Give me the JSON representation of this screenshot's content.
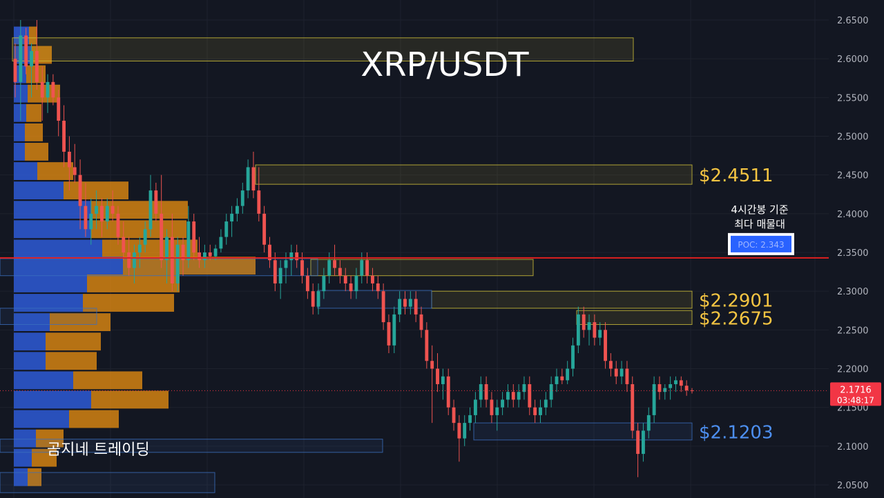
{
  "chart_data": {
    "type": "candlestick",
    "title": "XRP/USDT",
    "watermark": "곰지네 트레이딩",
    "y_axis": {
      "min": 2.04,
      "max": 2.66,
      "ticks": [
        "2.6500",
        "2.6000",
        "2.5500",
        "2.5000",
        "2.4500",
        "2.4000",
        "2.3500",
        "2.3000",
        "2.2500",
        "2.2000",
        "2.1500",
        "2.1000",
        "2.0500"
      ]
    },
    "current_price": {
      "value": 2.1716,
      "label": "2.1716",
      "countdown": "03:48:17",
      "color": "#f23645"
    },
    "poc": {
      "value": 2.343,
      "label": "POC: 2.343",
      "note_line1": "4시간봉 기준",
      "note_line2": "최다 매물대",
      "line_color": "#e0201f"
    },
    "zones": [
      {
        "name": "zone-2.61",
        "top": 2.627,
        "bottom": 2.597,
        "x0": 18,
        "x1": 917,
        "color": "#d4c43a",
        "label": ""
      },
      {
        "name": "zone-2.4511",
        "top": 2.463,
        "bottom": 2.438,
        "x0": 370,
        "x1": 1002,
        "color": "#d4c43a",
        "label": "$2.4511",
        "label_color": "#f5c542"
      },
      {
        "name": "zone-2.33",
        "top": 2.341,
        "bottom": 2.32,
        "x0": 450,
        "x1": 772,
        "color": "#d4c43a",
        "label": ""
      },
      {
        "name": "zone-2.2901",
        "top": 2.3,
        "bottom": 2.278,
        "x0": 625,
        "x1": 1002,
        "color": "#d4c43a",
        "label": "$2.2901",
        "label_color": "#f5c542"
      },
      {
        "name": "zone-2.2675",
        "top": 2.275,
        "bottom": 2.257,
        "x0": 835,
        "x1": 1002,
        "color": "#d4c43a",
        "label": "$2.2675",
        "label_color": "#f5c542"
      },
      {
        "name": "zone-2.1203",
        "top": 2.13,
        "bottom": 2.108,
        "x0": 686,
        "x1": 1002,
        "color": "#3b6fbf",
        "label": "$2.1203",
        "label_color": "#4d8ff0"
      },
      {
        "name": "zone-2.30-blue",
        "top": 2.301,
        "bottom": 2.278,
        "x0": 460,
        "x1": 625,
        "color": "#3b6fbf",
        "label": ""
      },
      {
        "name": "zone-2.34-blue",
        "top": 2.342,
        "bottom": 2.32,
        "x0": 0,
        "x1": 460,
        "color": "#3b6fbf",
        "label": ""
      },
      {
        "name": "zone-2.27-blue",
        "top": 2.278,
        "bottom": 2.257,
        "x0": 0,
        "x1": 140,
        "color": "#3b6fbf",
        "label": ""
      },
      {
        "name": "zone-2.10-blue",
        "top": 2.109,
        "bottom": 2.092,
        "x0": 0,
        "x1": 554,
        "color": "#3b6fbf",
        "label": ""
      },
      {
        "name": "zone-2.05-blue",
        "top": 2.066,
        "bottom": 2.04,
        "x0": 0,
        "x1": 311,
        "color": "#3b6fbf",
        "label": ""
      }
    ],
    "volume_profile": {
      "blue_color": "#2e5ad6",
      "orange_color": "#e08a12",
      "rows": [
        {
          "price": 2.63,
          "buy": 22,
          "sell": 12
        },
        {
          "price": 2.605,
          "buy": 25,
          "sell": 30
        },
        {
          "price": 2.58,
          "buy": 18,
          "sell": 28
        },
        {
          "price": 2.555,
          "buy": 20,
          "sell": 47
        },
        {
          "price": 2.53,
          "buy": 18,
          "sell": 22
        },
        {
          "price": 2.505,
          "buy": 16,
          "sell": 26
        },
        {
          "price": 2.48,
          "buy": 16,
          "sell": 34
        },
        {
          "price": 2.455,
          "buy": 34,
          "sell": 52
        },
        {
          "price": 2.43,
          "buy": 72,
          "sell": 94
        },
        {
          "price": 2.405,
          "buy": 112,
          "sell": 140
        },
        {
          "price": 2.38,
          "buy": 112,
          "sell": 138
        },
        {
          "price": 2.355,
          "buy": 128,
          "sell": 138
        },
        {
          "price": 2.333,
          "buy": 158,
          "sell": 192
        },
        {
          "price": 2.31,
          "buy": 106,
          "sell": 134
        },
        {
          "price": 2.285,
          "buy": 100,
          "sell": 132
        },
        {
          "price": 2.26,
          "buy": 52,
          "sell": 88
        },
        {
          "price": 2.235,
          "buy": 46,
          "sell": 80
        },
        {
          "price": 2.21,
          "buy": 46,
          "sell": 74
        },
        {
          "price": 2.185,
          "buy": 86,
          "sell": 100
        },
        {
          "price": 2.16,
          "buy": 112,
          "sell": 112
        },
        {
          "price": 2.135,
          "buy": 80,
          "sell": 72
        },
        {
          "price": 2.11,
          "buy": 32,
          "sell": 40
        },
        {
          "price": 2.085,
          "buy": 26,
          "sell": 36
        },
        {
          "price": 2.06,
          "buy": 20,
          "sell": 20
        }
      ]
    },
    "candles": [
      {
        "o": 2.6,
        "h": 2.62,
        "l": 2.55,
        "c": 2.57
      },
      {
        "o": 2.57,
        "h": 2.65,
        "l": 2.52,
        "c": 2.63
      },
      {
        "o": 2.63,
        "h": 2.64,
        "l": 2.58,
        "c": 2.59
      },
      {
        "o": 2.59,
        "h": 2.62,
        "l": 2.55,
        "c": 2.61
      },
      {
        "o": 2.61,
        "h": 2.65,
        "l": 2.56,
        "c": 2.57
      },
      {
        "o": 2.57,
        "h": 2.59,
        "l": 2.52,
        "c": 2.55
      },
      {
        "o": 2.55,
        "h": 2.58,
        "l": 2.53,
        "c": 2.57
      },
      {
        "o": 2.57,
        "h": 2.58,
        "l": 2.54,
        "c": 2.55
      },
      {
        "o": 2.55,
        "h": 2.56,
        "l": 2.5,
        "c": 2.52
      },
      {
        "o": 2.52,
        "h": 2.54,
        "l": 2.46,
        "c": 2.48
      },
      {
        "o": 2.48,
        "h": 2.5,
        "l": 2.43,
        "c": 2.46
      },
      {
        "o": 2.46,
        "h": 2.49,
        "l": 2.44,
        "c": 2.45
      },
      {
        "o": 2.45,
        "h": 2.47,
        "l": 2.38,
        "c": 2.41
      },
      {
        "o": 2.41,
        "h": 2.44,
        "l": 2.37,
        "c": 2.38
      },
      {
        "o": 2.38,
        "h": 2.42,
        "l": 2.36,
        "c": 2.4
      },
      {
        "o": 2.4,
        "h": 2.43,
        "l": 2.38,
        "c": 2.41
      },
      {
        "o": 2.41,
        "h": 2.42,
        "l": 2.37,
        "c": 2.39
      },
      {
        "o": 2.39,
        "h": 2.42,
        "l": 2.38,
        "c": 2.41
      },
      {
        "o": 2.41,
        "h": 2.43,
        "l": 2.39,
        "c": 2.4
      },
      {
        "o": 2.4,
        "h": 2.41,
        "l": 2.36,
        "c": 2.37
      },
      {
        "o": 2.37,
        "h": 2.39,
        "l": 2.34,
        "c": 2.35
      },
      {
        "o": 2.35,
        "h": 2.37,
        "l": 2.32,
        "c": 2.33
      },
      {
        "o": 2.33,
        "h": 2.36,
        "l": 2.31,
        "c": 2.35
      },
      {
        "o": 2.35,
        "h": 2.37,
        "l": 2.33,
        "c": 2.36
      },
      {
        "o": 2.36,
        "h": 2.39,
        "l": 2.35,
        "c": 2.38
      },
      {
        "o": 2.38,
        "h": 2.45,
        "l": 2.37,
        "c": 2.43
      },
      {
        "o": 2.43,
        "h": 2.44,
        "l": 2.39,
        "c": 2.4
      },
      {
        "o": 2.4,
        "h": 2.45,
        "l": 2.33,
        "c": 2.34
      },
      {
        "o": 2.34,
        "h": 2.38,
        "l": 2.31,
        "c": 2.37
      },
      {
        "o": 2.37,
        "h": 2.4,
        "l": 2.3,
        "c": 2.31
      },
      {
        "o": 2.31,
        "h": 2.37,
        "l": 2.3,
        "c": 2.36
      },
      {
        "o": 2.36,
        "h": 2.37,
        "l": 2.32,
        "c": 2.34
      },
      {
        "o": 2.34,
        "h": 2.41,
        "l": 2.33,
        "c": 2.39
      },
      {
        "o": 2.39,
        "h": 2.4,
        "l": 2.34,
        "c": 2.35
      },
      {
        "o": 2.35,
        "h": 2.37,
        "l": 2.33,
        "c": 2.34
      },
      {
        "o": 2.34,
        "h": 2.36,
        "l": 2.33,
        "c": 2.35
      },
      {
        "o": 2.35,
        "h": 2.36,
        "l": 2.34,
        "c": 2.345
      },
      {
        "o": 2.345,
        "h": 2.36,
        "l": 2.34,
        "c": 2.355
      },
      {
        "o": 2.355,
        "h": 2.38,
        "l": 2.35,
        "c": 2.37
      },
      {
        "o": 2.37,
        "h": 2.4,
        "l": 2.36,
        "c": 2.39
      },
      {
        "o": 2.39,
        "h": 2.41,
        "l": 2.37,
        "c": 2.4
      },
      {
        "o": 2.4,
        "h": 2.42,
        "l": 2.39,
        "c": 2.41
      },
      {
        "o": 2.41,
        "h": 2.44,
        "l": 2.4,
        "c": 2.43
      },
      {
        "o": 2.43,
        "h": 2.47,
        "l": 2.42,
        "c": 2.46
      },
      {
        "o": 2.46,
        "h": 2.48,
        "l": 2.42,
        "c": 2.43
      },
      {
        "o": 2.43,
        "h": 2.46,
        "l": 2.39,
        "c": 2.4
      },
      {
        "o": 2.4,
        "h": 2.41,
        "l": 2.35,
        "c": 2.36
      },
      {
        "o": 2.36,
        "h": 2.37,
        "l": 2.33,
        "c": 2.34
      },
      {
        "o": 2.34,
        "h": 2.35,
        "l": 2.3,
        "c": 2.31
      },
      {
        "o": 2.31,
        "h": 2.34,
        "l": 2.29,
        "c": 2.33
      },
      {
        "o": 2.33,
        "h": 2.35,
        "l": 2.31,
        "c": 2.34
      },
      {
        "o": 2.34,
        "h": 2.36,
        "l": 2.32,
        "c": 2.35
      },
      {
        "o": 2.35,
        "h": 2.36,
        "l": 2.33,
        "c": 2.34
      },
      {
        "o": 2.34,
        "h": 2.35,
        "l": 2.31,
        "c": 2.32
      },
      {
        "o": 2.32,
        "h": 2.33,
        "l": 2.29,
        "c": 2.3
      },
      {
        "o": 2.3,
        "h": 2.31,
        "l": 2.27,
        "c": 2.28
      },
      {
        "o": 2.28,
        "h": 2.31,
        "l": 2.27,
        "c": 2.3
      },
      {
        "o": 2.3,
        "h": 2.33,
        "l": 2.29,
        "c": 2.32
      },
      {
        "o": 2.32,
        "h": 2.35,
        "l": 2.31,
        "c": 2.34
      },
      {
        "o": 2.34,
        "h": 2.36,
        "l": 2.32,
        "c": 2.33
      },
      {
        "o": 2.33,
        "h": 2.34,
        "l": 2.31,
        "c": 2.32
      },
      {
        "o": 2.32,
        "h": 2.33,
        "l": 2.3,
        "c": 2.31
      },
      {
        "o": 2.31,
        "h": 2.32,
        "l": 2.29,
        "c": 2.3
      },
      {
        "o": 2.3,
        "h": 2.33,
        "l": 2.29,
        "c": 2.32
      },
      {
        "o": 2.32,
        "h": 2.35,
        "l": 2.31,
        "c": 2.34
      },
      {
        "o": 2.34,
        "h": 2.35,
        "l": 2.31,
        "c": 2.32
      },
      {
        "o": 2.32,
        "h": 2.33,
        "l": 2.3,
        "c": 2.31
      },
      {
        "o": 2.31,
        "h": 2.32,
        "l": 2.29,
        "c": 2.3
      },
      {
        "o": 2.3,
        "h": 2.31,
        "l": 2.25,
        "c": 2.26
      },
      {
        "o": 2.26,
        "h": 2.27,
        "l": 2.22,
        "c": 2.23
      },
      {
        "o": 2.23,
        "h": 2.28,
        "l": 2.22,
        "c": 2.27
      },
      {
        "o": 2.27,
        "h": 2.3,
        "l": 2.26,
        "c": 2.29
      },
      {
        "o": 2.29,
        "h": 2.3,
        "l": 2.27,
        "c": 2.28
      },
      {
        "o": 2.28,
        "h": 2.3,
        "l": 2.27,
        "c": 2.29
      },
      {
        "o": 2.29,
        "h": 2.3,
        "l": 2.26,
        "c": 2.27
      },
      {
        "o": 2.27,
        "h": 2.28,
        "l": 2.24,
        "c": 2.25
      },
      {
        "o": 2.25,
        "h": 2.26,
        "l": 2.2,
        "c": 2.21
      },
      {
        "o": 2.21,
        "h": 2.23,
        "l": 2.13,
        "c": 2.2
      },
      {
        "o": 2.2,
        "h": 2.22,
        "l": 2.17,
        "c": 2.18
      },
      {
        "o": 2.18,
        "h": 2.2,
        "l": 2.16,
        "c": 2.19
      },
      {
        "o": 2.19,
        "h": 2.2,
        "l": 2.14,
        "c": 2.15
      },
      {
        "o": 2.15,
        "h": 2.16,
        "l": 2.12,
        "c": 2.13
      },
      {
        "o": 2.13,
        "h": 2.14,
        "l": 2.08,
        "c": 2.11
      },
      {
        "o": 2.11,
        "h": 2.14,
        "l": 2.1,
        "c": 2.13
      },
      {
        "o": 2.13,
        "h": 2.15,
        "l": 2.12,
        "c": 2.14
      },
      {
        "o": 2.14,
        "h": 2.17,
        "l": 2.13,
        "c": 2.16
      },
      {
        "o": 2.16,
        "h": 2.19,
        "l": 2.15,
        "c": 2.18
      },
      {
        "o": 2.18,
        "h": 2.19,
        "l": 2.15,
        "c": 2.16
      },
      {
        "o": 2.16,
        "h": 2.17,
        "l": 2.13,
        "c": 2.14
      },
      {
        "o": 2.14,
        "h": 2.16,
        "l": 2.12,
        "c": 2.15
      },
      {
        "o": 2.15,
        "h": 2.17,
        "l": 2.14,
        "c": 2.16
      },
      {
        "o": 2.16,
        "h": 2.18,
        "l": 2.15,
        "c": 2.17
      },
      {
        "o": 2.17,
        "h": 2.18,
        "l": 2.15,
        "c": 2.16
      },
      {
        "o": 2.16,
        "h": 2.18,
        "l": 2.15,
        "c": 2.17
      },
      {
        "o": 2.17,
        "h": 2.19,
        "l": 2.16,
        "c": 2.18
      },
      {
        "o": 2.18,
        "h": 2.19,
        "l": 2.14,
        "c": 2.15
      },
      {
        "o": 2.15,
        "h": 2.16,
        "l": 2.13,
        "c": 2.14
      },
      {
        "o": 2.14,
        "h": 2.16,
        "l": 2.13,
        "c": 2.15
      },
      {
        "o": 2.15,
        "h": 2.17,
        "l": 2.14,
        "c": 2.16
      },
      {
        "o": 2.16,
        "h": 2.19,
        "l": 2.15,
        "c": 2.18
      },
      {
        "o": 2.18,
        "h": 2.2,
        "l": 2.17,
        "c": 2.19
      },
      {
        "o": 2.19,
        "h": 2.2,
        "l": 2.18,
        "c": 2.185
      },
      {
        "o": 2.185,
        "h": 2.21,
        "l": 2.18,
        "c": 2.2
      },
      {
        "o": 2.2,
        "h": 2.24,
        "l": 2.19,
        "c": 2.23
      },
      {
        "o": 2.23,
        "h": 2.28,
        "l": 2.22,
        "c": 2.27
      },
      {
        "o": 2.27,
        "h": 2.28,
        "l": 2.24,
        "c": 2.25
      },
      {
        "o": 2.25,
        "h": 2.27,
        "l": 2.23,
        "c": 2.26
      },
      {
        "o": 2.26,
        "h": 2.27,
        "l": 2.23,
        "c": 2.24
      },
      {
        "o": 2.24,
        "h": 2.26,
        "l": 2.23,
        "c": 2.25
      },
      {
        "o": 2.25,
        "h": 2.26,
        "l": 2.2,
        "c": 2.21
      },
      {
        "o": 2.21,
        "h": 2.22,
        "l": 2.19,
        "c": 2.2
      },
      {
        "o": 2.2,
        "h": 2.21,
        "l": 2.18,
        "c": 2.19
      },
      {
        "o": 2.19,
        "h": 2.21,
        "l": 2.18,
        "c": 2.2
      },
      {
        "o": 2.2,
        "h": 2.21,
        "l": 2.17,
        "c": 2.18
      },
      {
        "o": 2.18,
        "h": 2.19,
        "l": 2.11,
        "c": 2.12
      },
      {
        "o": 2.12,
        "h": 2.13,
        "l": 2.06,
        "c": 2.09
      },
      {
        "o": 2.09,
        "h": 2.13,
        "l": 2.08,
        "c": 2.12
      },
      {
        "o": 2.12,
        "h": 2.15,
        "l": 2.11,
        "c": 2.14
      },
      {
        "o": 2.14,
        "h": 2.19,
        "l": 2.13,
        "c": 2.18
      },
      {
        "o": 2.18,
        "h": 2.19,
        "l": 2.16,
        "c": 2.17
      },
      {
        "o": 2.17,
        "h": 2.18,
        "l": 2.16,
        "c": 2.175
      },
      {
        "o": 2.175,
        "h": 2.19,
        "l": 2.16,
        "c": 2.18
      },
      {
        "o": 2.18,
        "h": 2.19,
        "l": 2.17,
        "c": 2.185
      },
      {
        "o": 2.185,
        "h": 2.19,
        "l": 2.17,
        "c": 2.178
      },
      {
        "o": 2.178,
        "h": 2.185,
        "l": 2.165,
        "c": 2.172
      },
      {
        "o": 2.172,
        "h": 2.175,
        "l": 2.168,
        "c": 2.1716
      }
    ]
  }
}
